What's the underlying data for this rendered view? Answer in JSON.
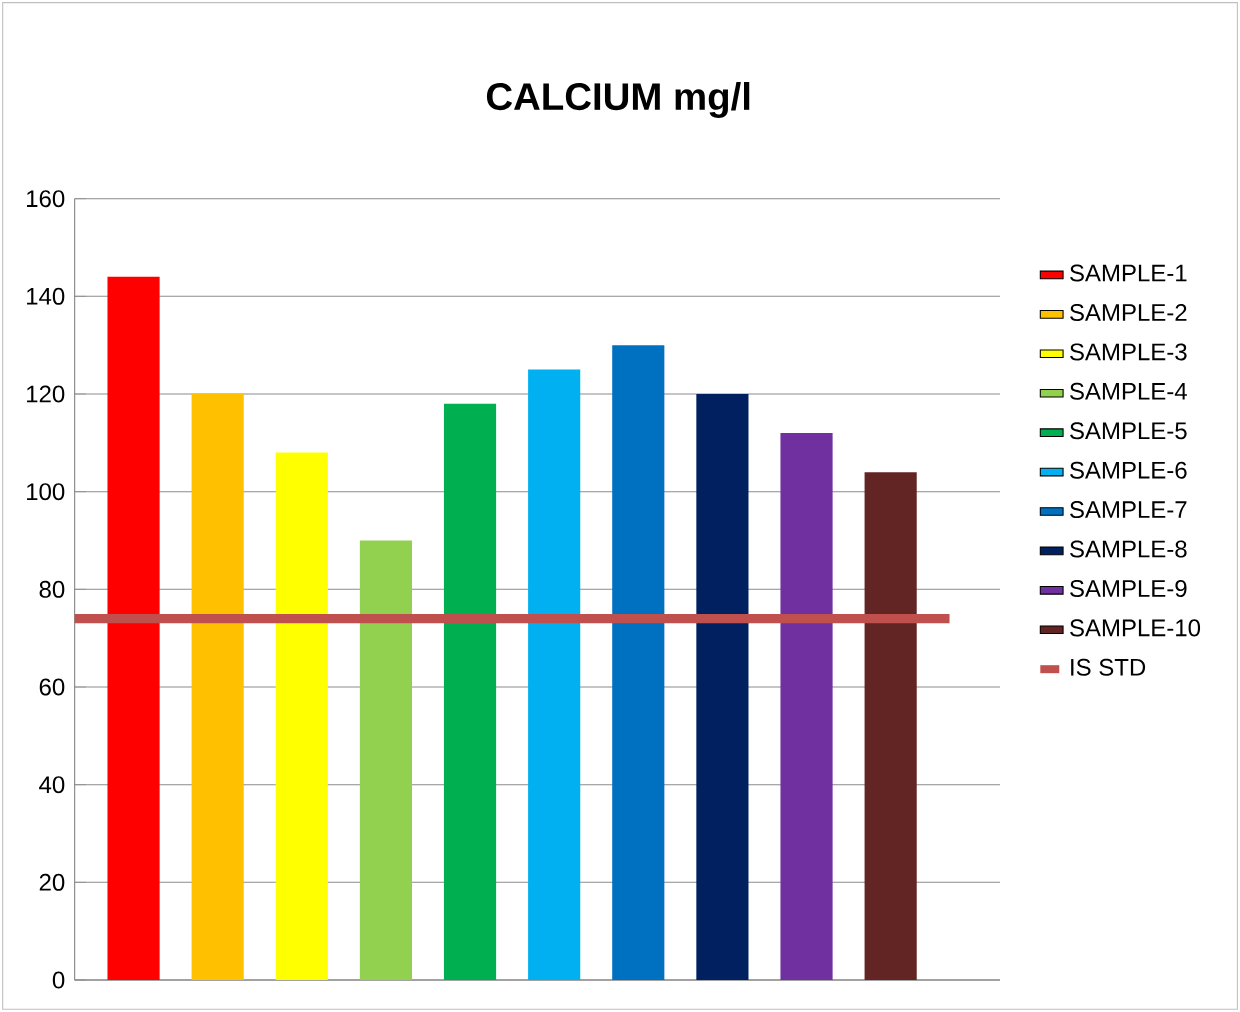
{
  "chart_data": {
    "type": "bar",
    "title": "CALCIUM  mg/l",
    "categories": [
      null
    ],
    "series": [
      {
        "name": "SAMPLE-1",
        "color": "#ff0000",
        "values": [
          144
        ]
      },
      {
        "name": "SAMPLE-2",
        "color": "#ffc000",
        "values": [
          120
        ]
      },
      {
        "name": "SAMPLE-3",
        "color": "#ffff00",
        "values": [
          108
        ]
      },
      {
        "name": "SAMPLE-4",
        "color": "#92d050",
        "values": [
          90
        ]
      },
      {
        "name": "SAMPLE-5",
        "color": "#00b050",
        "values": [
          118
        ]
      },
      {
        "name": "SAMPLE-6",
        "color": "#00b0f0",
        "values": [
          125
        ]
      },
      {
        "name": "SAMPLE-7",
        "color": "#0070c0",
        "values": [
          130
        ]
      },
      {
        "name": "SAMPLE-8",
        "color": "#002060",
        "values": [
          120
        ]
      },
      {
        "name": "SAMPLE-9",
        "color": "#7030a0",
        "values": [
          112
        ]
      },
      {
        "name": "SAMPLE-10",
        "color": "#632523",
        "values": [
          104
        ]
      }
    ],
    "ref_lines": [
      {
        "axis": "y",
        "value": 74,
        "label": "IS STD",
        "color": "#c0504d"
      }
    ],
    "ylim": [
      0,
      160
    ],
    "yticks": [
      0,
      20,
      40,
      60,
      80,
      100,
      120,
      140,
      160
    ],
    "grid": "y",
    "legend": "right"
  }
}
